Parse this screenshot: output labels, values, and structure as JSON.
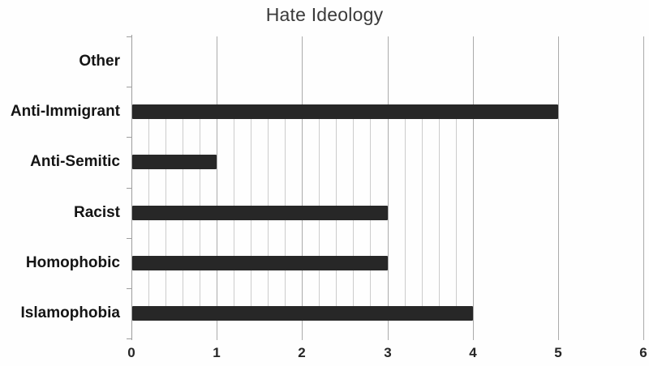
{
  "chart_data": {
    "type": "bar",
    "orientation": "horizontal",
    "title": "Hate Ideology",
    "categories": [
      "Other",
      "Anti-Immigrant",
      "Anti-Semitic",
      "Racist",
      "Homophobic",
      "Islamophobia"
    ],
    "values": [
      0,
      5,
      1,
      3,
      3,
      4
    ],
    "xlabel": "",
    "ylabel": "",
    "xlim": [
      0,
      6
    ],
    "x_tick_labels": [
      "0",
      "1",
      "2",
      "3",
      "4",
      "5",
      "6"
    ],
    "x_major_unit": 1,
    "x_minor_unit": 0.2,
    "minor_grid_extent": {
      "x_max": 3.8,
      "note": "thin minor gridlines visible only between values 0-4 and between second bar and last bar"
    },
    "grid": "vertical major + partial minor",
    "legend": false,
    "bar_color": "#272727",
    "major_grid_color": "#ababab",
    "minor_grid_color": "#cccccc",
    "axis_color": "#9e9e9e",
    "title_color": "#3a3a3a",
    "label_color": "#141414"
  }
}
